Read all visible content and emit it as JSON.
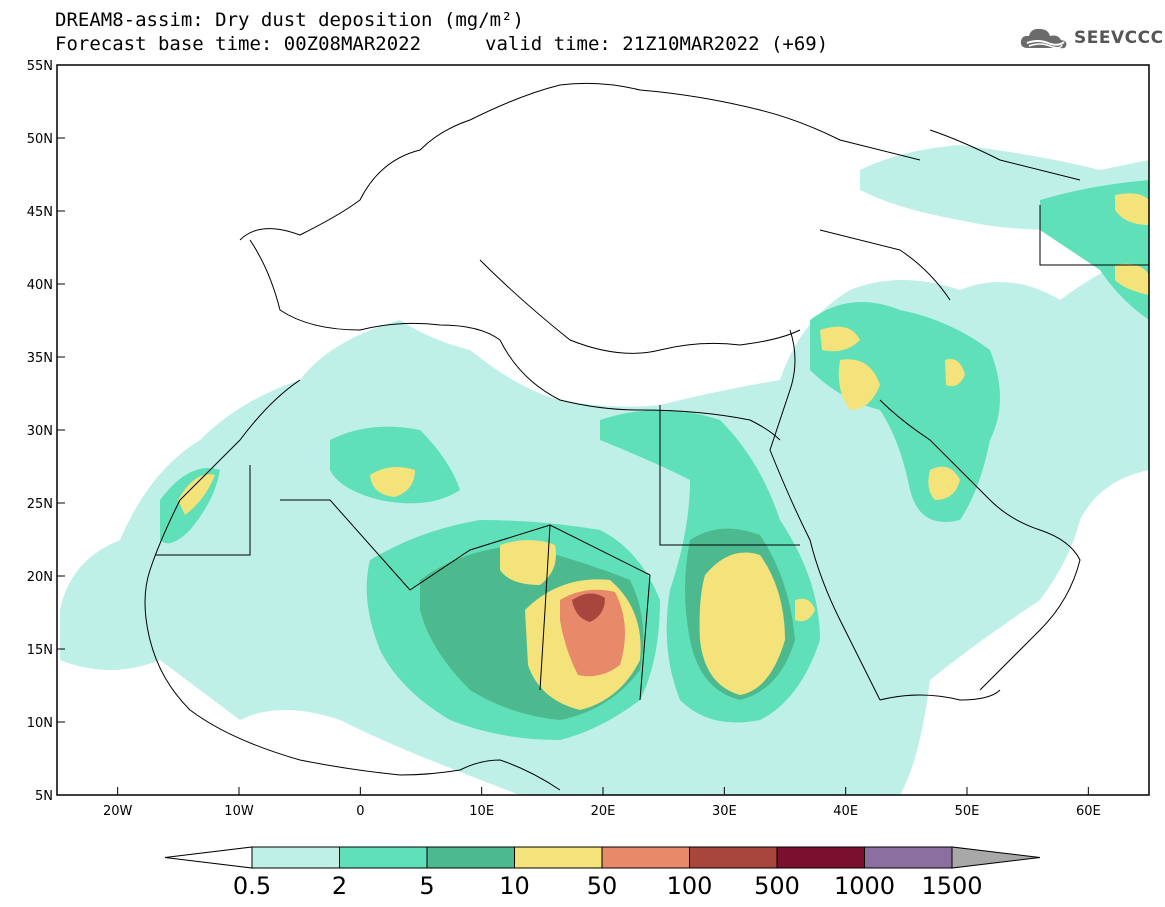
{
  "title": {
    "line1": "DREAM8-assim: Dry dust deposition (mg/m²)",
    "line2_left": "Forecast base time: 00Z08MAR2022",
    "line2_right": "valid time: 21Z10MAR2022 (+69)"
  },
  "logo": {
    "text": "SEEVCCC",
    "icon": "cloud-icon"
  },
  "axes": {
    "lon_labels": [
      "20W",
      "10W",
      "0",
      "10E",
      "20E",
      "30E",
      "40E",
      "50E",
      "60E"
    ],
    "lat_labels": [
      "55N",
      "50N",
      "45N",
      "40N",
      "35N",
      "30N",
      "25N",
      "20N",
      "15N",
      "10N",
      "5N"
    ],
    "lon_range": [
      -25,
      65
    ],
    "lat_range": [
      5,
      55
    ]
  },
  "colorbar": {
    "labels": [
      "0.5",
      "2",
      "5",
      "10",
      "50",
      "100",
      "500",
      "1000",
      "1500"
    ],
    "colors": [
      "#bff0e8",
      "#5fe0b8",
      "#4cba8e",
      "#f4e27a",
      "#e8896a",
      "#a8463e",
      "#7a0f2e",
      "#8b6fa0"
    ],
    "under_color": "#ffffff",
    "over_color": "#a8a8a8"
  },
  "chart_data": {
    "type": "heatmap",
    "title": "DREAM8-assim: Dry dust deposition (mg/m²)",
    "levels": [
      0.5,
      2,
      5,
      10,
      50,
      100,
      500,
      1000,
      1500
    ],
    "units": "mg/m²",
    "xlim": [
      -25,
      65
    ],
    "ylim": [
      5,
      55
    ]
  }
}
